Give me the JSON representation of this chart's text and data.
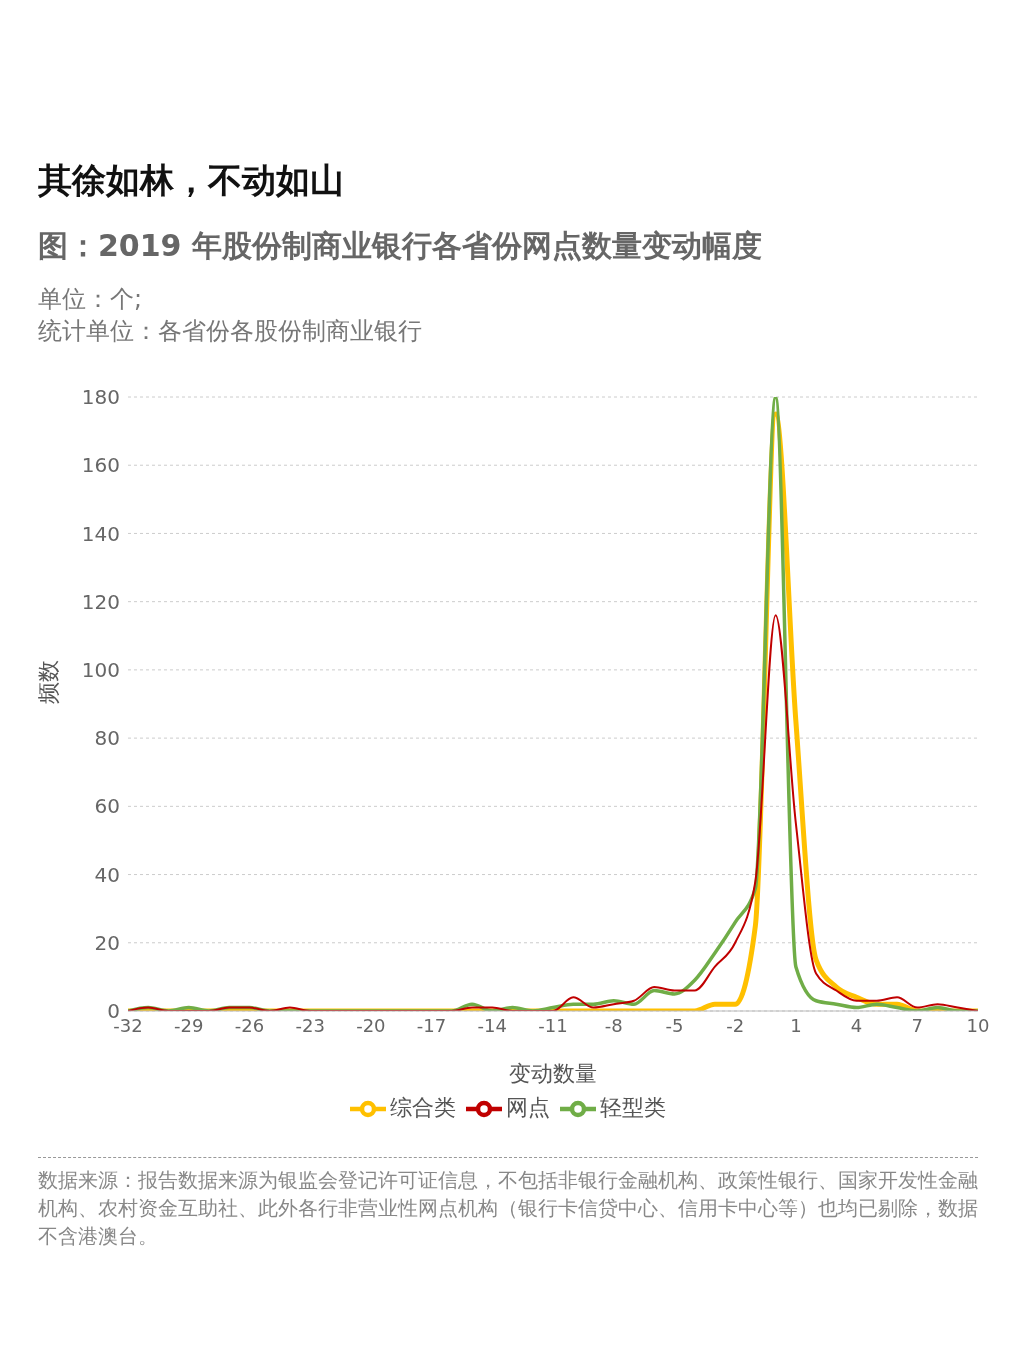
{
  "chart_data": {
    "type": "line",
    "title": "其徐如林，不动如山",
    "subtitle": "图：2019 年股份制商业银行各省份网点数量变动幅度",
    "annotations": [
      "单位：个;",
      "统计单位：各省份各股份制商业银行",
      "数据来源：报告数据来源为银监会登记许可证信息，不包括非银行金融机构、政策性银行、国家开发性金融机构、农村资金互助社、此外各行非营业性网点机构（银行卡信贷中心、信用卡中心等）也均已剔除，数据不含港澳台。"
    ],
    "xlabel": "变动数量",
    "ylabel": "频数",
    "x": [
      -32,
      -31,
      -30,
      -29,
      -28,
      -27,
      -26,
      -25,
      -24,
      -23,
      -22,
      -21,
      -20,
      -19,
      -18,
      -17,
      -16,
      -15,
      -14,
      -13,
      -12,
      -11,
      -10,
      -9,
      -8,
      -7,
      -6,
      -5,
      -4,
      -3,
      -2,
      -1,
      0,
      1,
      2,
      3,
      4,
      5,
      6,
      7,
      8,
      9,
      10
    ],
    "series": [
      {
        "name": "综合类",
        "color": "#ffc000",
        "values": [
          0,
          0,
          0,
          0,
          0,
          0,
          0,
          0,
          0,
          0,
          0,
          0,
          0,
          0,
          0,
          0,
          0,
          0,
          0,
          0,
          0,
          0,
          0,
          0,
          0,
          0,
          0,
          0,
          0,
          2,
          2,
          25,
          175,
          85,
          15,
          7,
          4,
          2,
          2,
          0,
          0,
          0,
          0
        ]
      },
      {
        "name": "轻型类",
        "color": "#70ad47",
        "values": [
          0,
          1,
          0,
          1,
          0,
          1,
          1,
          0,
          0,
          0,
          0,
          0,
          0,
          0,
          0,
          0,
          0,
          2,
          0,
          1,
          0,
          1,
          2,
          2,
          3,
          2,
          6,
          5,
          9,
          17,
          26,
          36,
          180,
          13,
          3,
          2,
          1,
          2,
          1,
          0,
          1,
          0,
          0
        ]
      },
      {
        "name": "网点",
        "color": "#c00000",
        "values": [
          0,
          1,
          0,
          0,
          0,
          1,
          1,
          0,
          1,
          0,
          0,
          0,
          0,
          0,
          0,
          0,
          0,
          1,
          1,
          0,
          0,
          0,
          4,
          1,
          2,
          3,
          7,
          6,
          6,
          13,
          20,
          38,
          116,
          55,
          11,
          6,
          3,
          3,
          4,
          1,
          2,
          1,
          0
        ]
      }
    ],
    "xlim": [
      -32,
      10
    ],
    "xticks": [
      -32,
      -29,
      -26,
      -23,
      -20,
      -17,
      -14,
      -11,
      -8,
      -5,
      -2,
      1,
      4,
      7,
      10
    ],
    "ylim": [
      0,
      180
    ],
    "yticks": [
      0,
      20,
      40,
      60,
      80,
      100,
      120,
      140,
      160,
      180
    ],
    "grid": "y",
    "legend": "bottom",
    "marker": "none",
    "line_style": "solid"
  }
}
